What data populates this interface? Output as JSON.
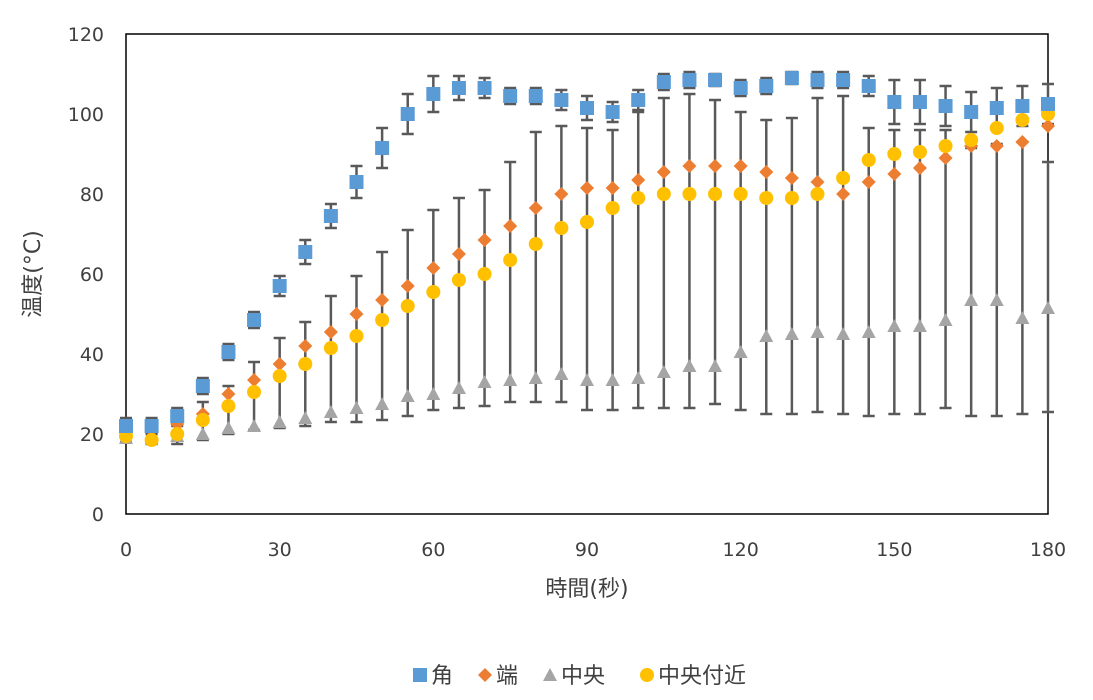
{
  "chart_data": {
    "type": "scatter",
    "title": "",
    "xlabel": "時間(秒)",
    "ylabel": "温度(°C)",
    "xlim": [
      0,
      180
    ],
    "ylim": [
      0,
      120
    ],
    "xticks": [
      0,
      30,
      60,
      90,
      120,
      150,
      180
    ],
    "yticks": [
      0,
      20,
      40,
      60,
      80,
      100,
      120
    ],
    "xtick_labels": [
      "0",
      "30",
      "60",
      "90",
      "120",
      "150",
      "180"
    ],
    "ytick_labels": [
      "0",
      "20",
      "40",
      "60",
      "80",
      "100",
      "120"
    ],
    "grid": false,
    "legend_position": "bottom",
    "x": [
      0,
      5,
      10,
      15,
      20,
      25,
      30,
      35,
      40,
      45,
      50,
      55,
      60,
      65,
      70,
      75,
      80,
      85,
      90,
      95,
      100,
      105,
      110,
      115,
      120,
      125,
      130,
      135,
      140,
      145,
      150,
      155,
      160,
      165,
      170,
      175,
      180
    ],
    "series": [
      {
        "name": "角",
        "marker": "square",
        "color": "#5b9bd5",
        "values": [
          22,
          22,
          24.5,
          32,
          40.5,
          48.5,
          57,
          65.5,
          74.5,
          83,
          91.5,
          100,
          105,
          106.5,
          106.5,
          104.5,
          104.5,
          103.5,
          101.5,
          100.5,
          103.5,
          108,
          108.5,
          108.5,
          106.5,
          107,
          109,
          108.5,
          108.5,
          107,
          103,
          103,
          102,
          100.5,
          101.5,
          102,
          102.5
        ],
        "errors": [
          2,
          2,
          2,
          2,
          2,
          2,
          2.5,
          3,
          3,
          4,
          5,
          5,
          4.5,
          3,
          2.5,
          2,
          2,
          2.5,
          3,
          2.5,
          2.5,
          2,
          2,
          1.5,
          2,
          2,
          1.5,
          2,
          2,
          2.5,
          5.5,
          5.5,
          5,
          5,
          5,
          5,
          5
        ]
      },
      {
        "name": "端",
        "marker": "diamond",
        "color": "#ed7d31",
        "values": [
          21,
          21,
          22.5,
          25,
          30,
          33.5,
          37.5,
          42,
          45.5,
          50,
          53.5,
          57,
          61.5,
          65,
          68.5,
          72,
          76.5,
          80,
          81.5,
          81.5,
          83.5,
          85.5,
          87,
          87,
          87,
          85.5,
          84,
          83,
          80,
          83,
          85,
          86.5,
          89,
          92,
          92,
          93,
          97
        ]
      },
      {
        "name": "中央",
        "marker": "triangle",
        "color": "#a5a5a5",
        "values": [
          19,
          19,
          19.5,
          20,
          21.5,
          22,
          23,
          24,
          25.5,
          26.5,
          27.5,
          29.5,
          30,
          31.5,
          33,
          33.5,
          34,
          35,
          33.5,
          33.5,
          34,
          35.5,
          37,
          37,
          40.5,
          44.5,
          45,
          45.5,
          45,
          45.5,
          47,
          47,
          48.5,
          53.5,
          53.5,
          49,
          51.5
        ]
      },
      {
        "name": "中央付近",
        "marker": "circle",
        "color": "#ffc000",
        "values": [
          19.5,
          18.5,
          20,
          23.5,
          27,
          30.5,
          34.5,
          37.5,
          41.5,
          44.5,
          48.5,
          52,
          55.5,
          58.5,
          60,
          63.5,
          67.5,
          71.5,
          73,
          76.5,
          79,
          80,
          80,
          80,
          80,
          79,
          79,
          80,
          84,
          88.5,
          90,
          90.5,
          92,
          93.5,
          96.5,
          98.5,
          100
        ]
      }
    ],
    "error_bars_wide": {
      "note_only_for_rendering": false,
      "upper": [
        20.5,
        20,
        22,
        28,
        32,
        38,
        44,
        48,
        54.5,
        59.5,
        65.5,
        71,
        76,
        79,
        81,
        88,
        95.5,
        97,
        96.5,
        96,
        100.5,
        104,
        105,
        103.5,
        100.5,
        98.5,
        99,
        104,
        104.5,
        96.5,
        96,
        96,
        96,
        91.5,
        92.5,
        93,
        88
      ],
      "lower": [
        18,
        17.5,
        17.5,
        18.5,
        20,
        21,
        21.5,
        22,
        23,
        23,
        23.5,
        24.5,
        26,
        26.5,
        27,
        28,
        28,
        28,
        26,
        26,
        26.5,
        26.5,
        26.5,
        27.5,
        26,
        25,
        25,
        25.5,
        25,
        24.5,
        25,
        25,
        26.5,
        24.5,
        24.5,
        25,
        25.5
      ]
    }
  },
  "legend": {
    "items": [
      {
        "label": "角"
      },
      {
        "label": "端"
      },
      {
        "label": "中央"
      },
      {
        "label": "中央付近"
      }
    ]
  }
}
